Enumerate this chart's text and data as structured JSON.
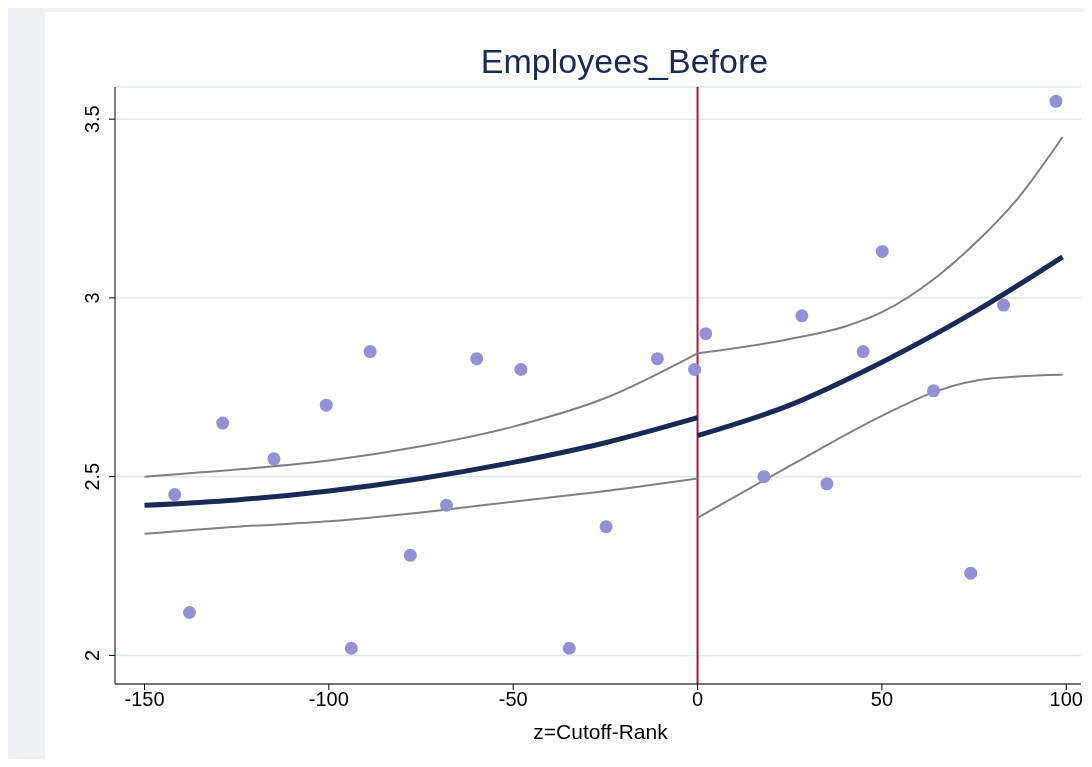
{
  "chart_data": {
    "type": "scatter",
    "title": "Employees_Before",
    "xlabel": "z=Cutoff-Rank",
    "xlim": [
      -158,
      104
    ],
    "xticks": [
      -150,
      -100,
      -50,
      0,
      50,
      100
    ],
    "ylim": [
      1.92,
      3.59
    ],
    "yticks": [
      2,
      2.5,
      3,
      3.5
    ],
    "grid": "y",
    "legend": false,
    "ref_lines": [
      {
        "axis": "x",
        "value": 0,
        "color": "#b5123a"
      }
    ],
    "series": [
      {
        "marker": "circle",
        "color": "#9590d6",
        "x": [
          -141.8,
          -137.8,
          -128.8,
          -114.9,
          -100.7,
          -93.9,
          -88.8,
          -77.9,
          -68.1,
          -59.9,
          -47.9,
          -34.8,
          -24.8,
          -10.9,
          -0.8,
          2.2,
          18.0,
          28.3,
          35.1,
          44.9,
          50.1,
          64.0,
          74.1,
          83.0,
          97.2
        ],
        "values": [
          2.45,
          2.12,
          2.65,
          2.55,
          2.7,
          2.02,
          2.85,
          2.28,
          2.42,
          2.83,
          2.8,
          2.02,
          2.36,
          2.83,
          2.8,
          2.9,
          2.5,
          2.95,
          2.48,
          2.85,
          3.13,
          2.74,
          2.23,
          2.98,
          3.55
        ]
      },
      {
        "type": "line",
        "marker": "none",
        "color": "#808080",
        "x": [
          -150,
          -125,
          -100,
          -75,
          -50,
          -25,
          0
        ],
        "values": [
          2.5,
          2.52,
          2.545,
          2.585,
          2.64,
          2.72,
          2.845
        ]
      },
      {
        "type": "line",
        "marker": "none",
        "color": "#1a2a55",
        "x": [
          -150,
          -125,
          -100,
          -75,
          -50,
          -25,
          0
        ],
        "values": [
          2.42,
          2.435,
          2.46,
          2.495,
          2.54,
          2.595,
          2.665
        ]
      },
      {
        "type": "line",
        "marker": "none",
        "color": "#808080",
        "x": [
          -150,
          -125,
          -100,
          -75,
          -50,
          -25,
          0
        ],
        "values": [
          2.34,
          2.36,
          2.375,
          2.4,
          2.43,
          2.46,
          2.495
        ]
      },
      {
        "type": "line",
        "marker": "none",
        "color": "#808080",
        "x": [
          0,
          25,
          40,
          50,
          65,
          75,
          87,
          99
        ],
        "values": [
          2.845,
          2.885,
          2.92,
          2.96,
          3.06,
          3.15,
          3.28,
          3.45
        ]
      },
      {
        "type": "line",
        "marker": "none",
        "color": "#1a2a55",
        "x": [
          0,
          25,
          50,
          75,
          99
        ],
        "values": [
          2.615,
          2.7,
          2.82,
          2.96,
          3.115
        ]
      },
      {
        "type": "line",
        "marker": "none",
        "color": "#808080",
        "x": [
          0,
          25,
          50,
          65,
          80,
          99
        ],
        "values": [
          2.385,
          2.53,
          2.67,
          2.74,
          2.775,
          2.785
        ]
      }
    ]
  }
}
